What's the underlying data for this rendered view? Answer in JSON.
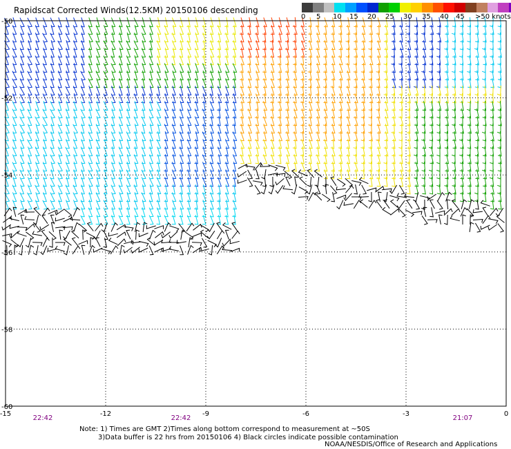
{
  "title": "Rapidscat Corrected Winds(12.5KM) 20150106 descending",
  "legend": {
    "colors": [
      "#3c3c3c",
      "#808080",
      "#c0c0c0",
      "#00e0f0",
      "#00a0ff",
      "#0050ff",
      "#0028d0",
      "#10a000",
      "#00d000",
      "#f0f000",
      "#ffd000",
      "#ff9000",
      "#ff5000",
      "#ff1000",
      "#d00000",
      "#804020",
      "#c08060",
      "#e0a0e0",
      "#c040c0",
      "#8000c0",
      "#400080"
    ],
    "labels": [
      "0",
      "5",
      "10",
      "15",
      "20",
      "25",
      "30",
      "35",
      "40",
      "45",
      ">50 knots"
    ]
  },
  "map": {
    "lat_labels": [
      "-50",
      "-52",
      "-54",
      "-56",
      "-58",
      "-60"
    ],
    "lon_labels": [
      "-15",
      "-12",
      "-9",
      "-6",
      "-3",
      "0"
    ],
    "time_labels": [
      "22:42",
      "22:42",
      "21:07"
    ],
    "lon_range": [
      -15,
      0
    ],
    "lat_range": [
      -60,
      -50
    ],
    "grid": "dotted"
  },
  "notes": {
    "line1": "Note: 1) Times are GMT 2)Times along bottom correspond to measurement at ~50S",
    "line2": "3)Data buffer is 22 hrs from 20150106 4) Black circles indicate possible contamination"
  },
  "credit": "NOAA/NESDIS/Office of Research and Applications"
}
